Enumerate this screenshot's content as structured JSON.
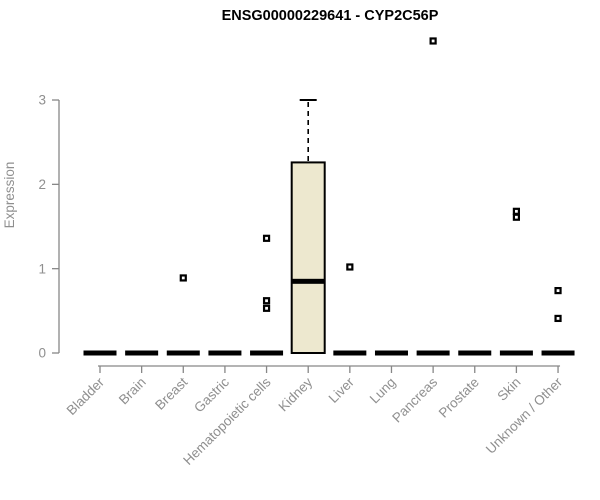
{
  "chart_data": {
    "type": "boxplot",
    "title": "ENSG00000229641 - CYP2C56P",
    "ylabel": "Expression",
    "xlabel": "",
    "ylim": [
      0,
      3
    ],
    "yticks": [
      0,
      1,
      2,
      3
    ],
    "grid": false,
    "legend": null,
    "categories": [
      "Bladder",
      "Brain",
      "Breast",
      "Gastric",
      "Hematopoietic cells",
      "Kidney",
      "Liver",
      "Lung",
      "Pancreas",
      "Prostate",
      "Skin",
      "Unknown / Other"
    ],
    "series": [
      {
        "name": "Bladder",
        "whisker_low": 0,
        "q1": 0,
        "median": 0,
        "q3": 0,
        "whisker_high": 0,
        "outliers": []
      },
      {
        "name": "Brain",
        "whisker_low": 0,
        "q1": 0,
        "median": 0,
        "q3": 0,
        "whisker_high": 0,
        "outliers": []
      },
      {
        "name": "Breast",
        "whisker_low": 0,
        "q1": 0,
        "median": 0,
        "q3": 0,
        "whisker_high": 0,
        "outliers": [
          0.89
        ]
      },
      {
        "name": "Gastric",
        "whisker_low": 0,
        "q1": 0,
        "median": 0,
        "q3": 0,
        "whisker_high": 0,
        "outliers": []
      },
      {
        "name": "Hematopoietic cells",
        "whisker_low": 0,
        "q1": 0,
        "median": 0,
        "q3": 0,
        "whisker_high": 0,
        "outliers": [
          1.36,
          0.62,
          0.53
        ]
      },
      {
        "name": "Kidney",
        "whisker_low": 0,
        "q1": 0,
        "median": 0.85,
        "q3": 2.26,
        "whisker_high": 3.0,
        "outliers": []
      },
      {
        "name": "Liver",
        "whisker_low": 0,
        "q1": 0,
        "median": 0,
        "q3": 0,
        "whisker_high": 0,
        "outliers": [
          1.02
        ]
      },
      {
        "name": "Lung",
        "whisker_low": 0,
        "q1": 0,
        "median": 0,
        "q3": 0,
        "whisker_high": 0,
        "outliers": []
      },
      {
        "name": "Pancreas",
        "whisker_low": 0,
        "q1": 0,
        "median": 0,
        "q3": 0,
        "whisker_high": 0,
        "outliers": [
          3.7
        ]
      },
      {
        "name": "Prostate",
        "whisker_low": 0,
        "q1": 0,
        "median": 0,
        "q3": 0,
        "whisker_high": 0,
        "outliers": []
      },
      {
        "name": "Skin",
        "whisker_low": 0,
        "q1": 0,
        "median": 0,
        "q3": 0,
        "whisker_high": 0,
        "outliers": [
          1.68,
          1.61
        ]
      },
      {
        "name": "Unknown / Other",
        "whisker_low": 0,
        "q1": 0,
        "median": 0,
        "q3": 0,
        "whisker_high": 0,
        "outliers": [
          0.74,
          0.41
        ]
      }
    ],
    "colors": {
      "box_fill": "#ede8cf",
      "box_stroke": "#000000",
      "median": "#000000",
      "outlier_stroke": "#000000",
      "axis_line": "#878787",
      "tick_label": "#8f8f8f",
      "title": "#000000",
      "background": "#ffffff"
    }
  }
}
